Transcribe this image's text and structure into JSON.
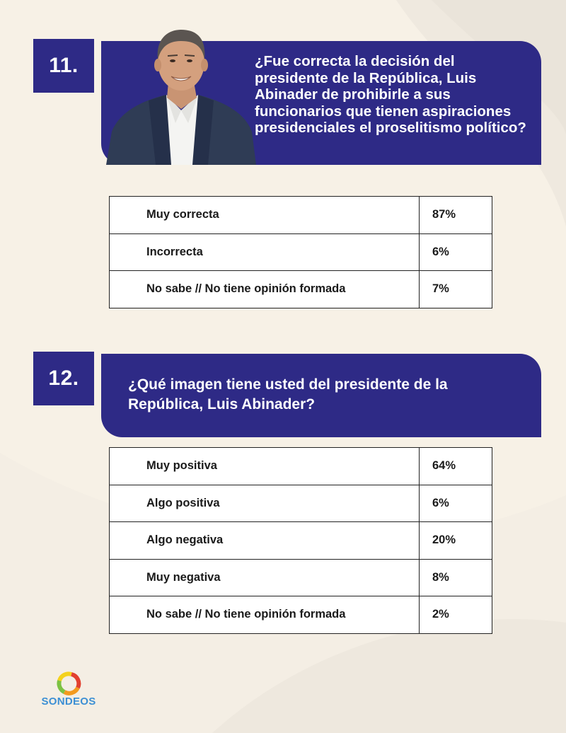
{
  "q11": {
    "number": "11.",
    "question": "¿Fue correcta la decisión del presidente de la República, Luis Abinader de prohibirle a sus funcionarios que tienen aspiraciones presidenciales el proselitismo político?",
    "rows": [
      {
        "label": "Muy correcta",
        "value": "87%"
      },
      {
        "label": "Incorrecta",
        "value": "6%"
      },
      {
        "label": "No sabe // No tiene opinión formada",
        "value": "7%"
      }
    ]
  },
  "q12": {
    "number": "12.",
    "question": "¿Qué imagen tiene usted del presidente de la República, Luis Abinader?",
    "rows": [
      {
        "label": "Muy positiva",
        "value": "64%"
      },
      {
        "label": "Algo positiva",
        "value": "6%"
      },
      {
        "label": "Algo negativa",
        "value": "20%"
      },
      {
        "label": "Muy negativa",
        "value": "8%"
      },
      {
        "label": "No sabe // No tiene opinión formada",
        "value": "2%"
      }
    ]
  },
  "logo": {
    "text": "SONDEOS"
  },
  "colors": {
    "banner": "#2e2a86",
    "background": "#f7f1e6",
    "logo_blue": "#3c8fd4",
    "logo_green": "#7cc242",
    "logo_orange": "#f39a1e",
    "logo_red": "#e2402f",
    "logo_yellow": "#f4d21d"
  }
}
